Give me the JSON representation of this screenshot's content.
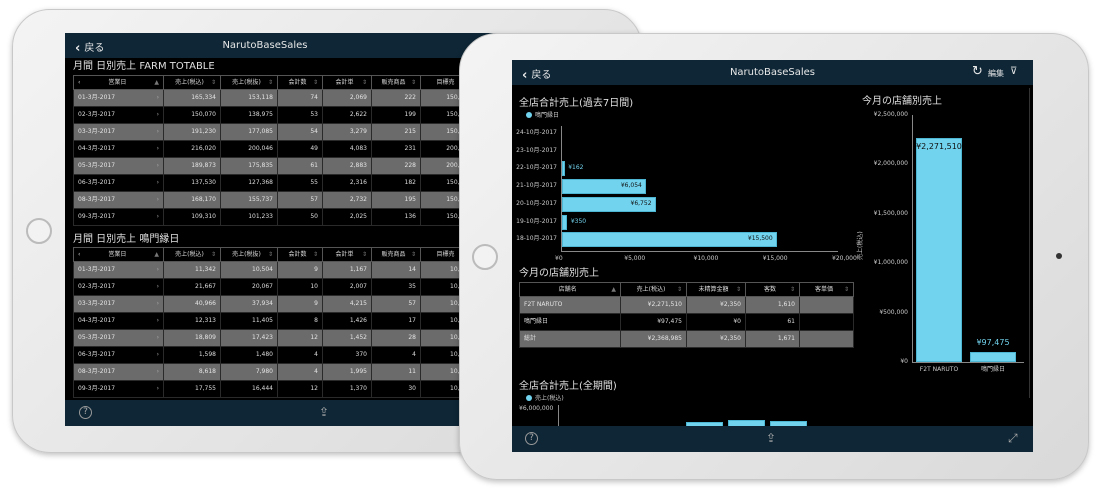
{
  "left_ipad": {
    "header": {
      "back_label": "戻る",
      "title": "NarutoBaseSales"
    },
    "columns": [
      "営業日",
      "売上(税込)",
      "売上(税抜)",
      "会計数",
      "会計単",
      "販売商品",
      "目標売"
    ],
    "table1": {
      "title": "月間 日別売上 FARM TOTABLE",
      "rows": [
        [
          "01-3月-2017",
          "165,334",
          "153,118",
          "74",
          "2,069",
          "222",
          "150,000"
        ],
        [
          "02-3月-2017",
          "150,070",
          "138,975",
          "53",
          "2,622",
          "199",
          "150,000"
        ],
        [
          "03-3月-2017",
          "191,230",
          "177,085",
          "54",
          "3,279",
          "215",
          "150,000"
        ],
        [
          "04-3月-2017",
          "216,020",
          "200,046",
          "49",
          "4,083",
          "231",
          "200,000"
        ],
        [
          "05-3月-2017",
          "189,873",
          "175,835",
          "61",
          "2,883",
          "228",
          "200,000"
        ],
        [
          "06-3月-2017",
          "137,530",
          "127,368",
          "55",
          "2,316",
          "182",
          "150,000"
        ],
        [
          "08-3月-2017",
          "168,170",
          "155,737",
          "57",
          "2,732",
          "195",
          "150,000"
        ],
        [
          "09-3月-2017",
          "109,310",
          "101,233",
          "50",
          "2,025",
          "136",
          "150,000"
        ]
      ]
    },
    "table2": {
      "title": "月間 日別売上 鳴門縁日",
      "rows": [
        [
          "01-3月-2017",
          "11,342",
          "10,504",
          "9",
          "1,167",
          "14",
          "10,000"
        ],
        [
          "02-3月-2017",
          "21,667",
          "20,067",
          "10",
          "2,007",
          "35",
          "10,000"
        ],
        [
          "03-3月-2017",
          "40,966",
          "37,934",
          "9",
          "4,215",
          "57",
          "10,000"
        ],
        [
          "04-3月-2017",
          "12,313",
          "11,405",
          "8",
          "1,426",
          "17",
          "10,000"
        ],
        [
          "05-3月-2017",
          "18,809",
          "17,423",
          "12",
          "1,452",
          "28",
          "10,000"
        ],
        [
          "06-3月-2017",
          "1,598",
          "1,480",
          "4",
          "370",
          "4",
          "10,000"
        ],
        [
          "08-3月-2017",
          "8,618",
          "7,980",
          "4",
          "1,995",
          "11",
          "10,000"
        ],
        [
          "09-3月-2017",
          "17,755",
          "16,444",
          "12",
          "1,370",
          "30",
          "10,000"
        ]
      ]
    }
  },
  "right_ipad": {
    "header": {
      "back_label": "戻る",
      "title": "NarutoBaseSales",
      "edit_label": "編集"
    },
    "store_table": {
      "title": "今月の店舗別売上",
      "columns": [
        "店舗名",
        "売上(税込)",
        "未精算金額",
        "客数",
        "客単価"
      ],
      "rows": [
        [
          "F2T NARUTO",
          "¥2,271,510",
          "¥2,350",
          "1,610",
          ""
        ],
        [
          "鳴門縁日",
          "¥97,475",
          "¥0",
          "61",
          ""
        ],
        [
          "総計",
          "¥2,368,985",
          "¥2,350",
          "1,671",
          ""
        ]
      ]
    }
  },
  "chart_data": [
    {
      "type": "bar",
      "orientation": "horizontal",
      "title": "全店合計売上(過去7日間)",
      "legend": "top-left",
      "categories": [
        "24-10月-2017",
        "23-10月-2017",
        "22-10月-2017",
        "21-10月-2017",
        "20-10月-2017",
        "19-10月-2017",
        "18-10月-2017"
      ],
      "series": [
        {
          "name": "鳴門縁日",
          "values": [
            null,
            null,
            162,
            6054,
            6752,
            350,
            15500
          ],
          "labels": [
            "",
            "",
            "¥162",
            "¥6,054",
            "¥6,752",
            "¥350",
            "¥15,500"
          ]
        }
      ],
      "xlim": [
        0,
        20000
      ],
      "xticks": [
        "¥0",
        "¥5,000",
        "¥10,000",
        "¥15,000",
        "¥20,000"
      ],
      "color": "#72d3ee"
    },
    {
      "type": "bar",
      "title": "今月の店舗別売上",
      "ylabel": "売上(税込)",
      "categories": [
        "F2T NARUTO",
        "鳴門縁日"
      ],
      "values": [
        2271510,
        97475
      ],
      "labels": [
        "¥2,271,510",
        "¥97,475"
      ],
      "ylim": [
        0,
        2500000
      ],
      "yticks": [
        "¥0",
        "¥500,000",
        "¥1,000,000",
        "¥1,500,000",
        "¥2,000,000",
        "¥2,500,000"
      ],
      "color": "#72d3ee"
    },
    {
      "type": "bar",
      "title": "全店合計売上(全期間)",
      "legend": "top-left",
      "series": [
        {
          "name": "売上(税込)"
        }
      ],
      "yticks": [
        "¥6,000,000"
      ],
      "color": "#72d3ee"
    }
  ]
}
